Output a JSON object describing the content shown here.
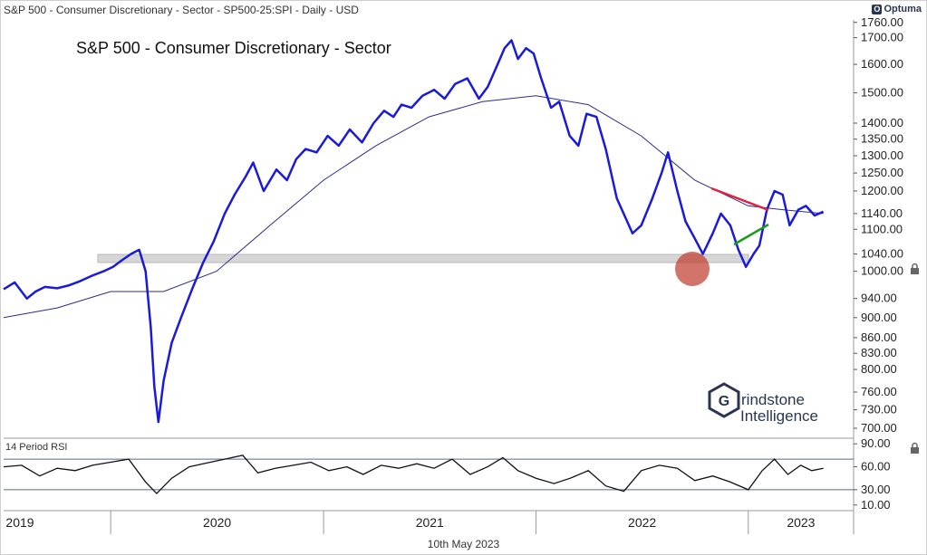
{
  "header": {
    "subtitle": "S&P 500 - Consumer Discretionary - Sector - SP500-25:SPI - Daily - USD",
    "brand": "Optuma",
    "brand_mark": "O"
  },
  "watermark": {
    "line1": "rindstone",
    "line2": "Intelligence",
    "mark": "G"
  },
  "colors": {
    "price": "#1a1adb",
    "ma": "#2c2c8a",
    "support_band": "#d6d6d6",
    "resistance": "#e0213f",
    "rising_support": "#159e15",
    "highlight": "#c0392b",
    "rsi": "#111111",
    "rsi_bounds": "#5a6a8a"
  },
  "footer": {
    "date": "10th May 2023"
  },
  "chart_data": [
    {
      "type": "line",
      "title": "S&P 500 - Consumer Discretionary - Sector",
      "scale": "log",
      "ylim": [
        690,
        1770
      ],
      "ytick_labels": [
        "1760.00",
        "1700.00",
        "1600.00",
        "1500.00",
        "1400.00",
        "1350.00",
        "1300.00",
        "1250.00",
        "1200.00",
        "1140.00",
        "1100.00",
        "1040.00",
        "1000.00",
        "940.00",
        "900.00",
        "860.00",
        "830.00",
        "800.00",
        "760.00",
        "730.00",
        "700.00"
      ],
      "x_labels": [
        "2019",
        "2020",
        "2021",
        "2022",
        "2023"
      ],
      "x_label_dates": [
        "2019-07-01",
        "2020-01-01",
        "2021-01-01",
        "2022-01-01",
        "2023-01-01"
      ],
      "xlim": [
        "2019-07-01",
        "2023-07-01"
      ],
      "series": [
        {
          "dates": [
            "2019-07-01",
            "2019-07-20",
            "2019-08-10",
            "2019-08-25",
            "2019-09-10",
            "2019-10-01",
            "2019-10-20",
            "2019-11-10",
            "2019-11-30",
            "2019-12-20",
            "2020-01-05",
            "2020-01-20",
            "2020-02-05",
            "2020-02-19",
            "2020-03-01",
            "2020-03-10",
            "2020-03-16",
            "2020-03-23",
            "2020-04-01",
            "2020-04-15",
            "2020-05-01",
            "2020-05-20",
            "2020-06-08",
            "2020-06-26",
            "2020-07-15",
            "2020-08-01",
            "2020-08-20",
            "2020-09-02",
            "2020-09-20",
            "2020-10-12",
            "2020-10-30",
            "2020-11-15",
            "2020-12-01",
            "2020-12-20",
            "2021-01-08",
            "2021-01-27",
            "2021-02-15",
            "2021-03-08",
            "2021-03-28",
            "2021-04-15",
            "2021-05-01",
            "2021-05-15",
            "2021-06-01",
            "2021-06-20",
            "2021-07-10",
            "2021-07-28",
            "2021-08-15",
            "2021-09-05",
            "2021-09-25",
            "2021-10-10",
            "2021-10-25",
            "2021-11-08",
            "2021-11-20",
            "2021-12-01",
            "2021-12-15",
            "2021-12-28",
            "2022-01-10",
            "2022-01-27",
            "2022-02-10",
            "2022-02-28",
            "2022-03-15",
            "2022-03-29",
            "2022-04-15",
            "2022-05-01",
            "2022-05-20",
            "2022-06-16",
            "2022-07-01",
            "2022-07-20",
            "2022-08-05",
            "2022-08-16",
            "2022-09-01",
            "2022-09-15",
            "2022-09-30",
            "2022-10-15",
            "2022-11-01",
            "2022-11-15",
            "2022-12-01",
            "2022-12-15",
            "2022-12-28",
            "2023-01-10",
            "2023-01-20",
            "2023-02-02",
            "2023-02-15",
            "2023-03-01",
            "2023-03-13",
            "2023-03-28",
            "2023-04-10",
            "2023-04-25",
            "2023-05-10"
          ],
          "values": [
            960,
            975,
            940,
            955,
            965,
            962,
            968,
            978,
            990,
            1000,
            1010,
            1025,
            1040,
            1050,
            1000,
            880,
            770,
            710,
            780,
            850,
            900,
            960,
            1020,
            1070,
            1140,
            1190,
            1240,
            1280,
            1200,
            1260,
            1230,
            1290,
            1320,
            1310,
            1360,
            1330,
            1380,
            1340,
            1400,
            1440,
            1420,
            1460,
            1450,
            1490,
            1510,
            1480,
            1530,
            1550,
            1480,
            1520,
            1590,
            1660,
            1690,
            1620,
            1660,
            1640,
            1550,
            1450,
            1470,
            1360,
            1330,
            1430,
            1420,
            1320,
            1180,
            1090,
            1110,
            1180,
            1250,
            1310,
            1200,
            1120,
            1080,
            1040,
            1090,
            1140,
            1110,
            1050,
            1010,
            1040,
            1060,
            1150,
            1200,
            1190,
            1110,
            1150,
            1160,
            1135,
            1145
          ]
        },
        {
          "dates": [
            "2019-07-01",
            "2019-10-01",
            "2020-01-01",
            "2020-04-01",
            "2020-07-01",
            "2020-10-01",
            "2021-01-01",
            "2021-04-01",
            "2021-07-01",
            "2021-10-01",
            "2022-01-01",
            "2022-04-01",
            "2022-07-01",
            "2022-10-01",
            "2023-01-01",
            "2023-03-01",
            "2023-05-10"
          ],
          "values": [
            900,
            920,
            955,
            955,
            1000,
            1110,
            1230,
            1330,
            1420,
            1470,
            1490,
            1460,
            1360,
            1230,
            1160,
            1150,
            1140
          ]
        }
      ]
    },
    {
      "type": "line",
      "title": "14 Period RSI",
      "ylim": [
        5,
        95
      ],
      "ytick_labels": [
        "90.00",
        "60.00",
        "30.00",
        "10.00"
      ],
      "reference_lines": [
        70,
        30
      ],
      "series": [
        {
          "dates": [
            "2019-07-01",
            "2019-08-01",
            "2019-09-01",
            "2019-10-01",
            "2019-11-01",
            "2019-12-01",
            "2020-01-01",
            "2020-02-01",
            "2020-03-01",
            "2020-03-20",
            "2020-04-15",
            "2020-05-15",
            "2020-06-15",
            "2020-07-15",
            "2020-08-15",
            "2020-09-10",
            "2020-10-10",
            "2020-11-10",
            "2020-12-10",
            "2021-01-10",
            "2021-02-10",
            "2021-03-10",
            "2021-04-10",
            "2021-05-10",
            "2021-06-10",
            "2021-07-10",
            "2021-08-10",
            "2021-09-10",
            "2021-10-10",
            "2021-11-05",
            "2021-12-01",
            "2022-01-01",
            "2022-02-01",
            "2022-03-01",
            "2022-04-01",
            "2022-05-01",
            "2022-06-01",
            "2022-07-01",
            "2022-08-01",
            "2022-09-01",
            "2022-10-01",
            "2022-11-01",
            "2022-12-01",
            "2023-01-01",
            "2023-01-25",
            "2023-02-15",
            "2023-03-10",
            "2023-04-01",
            "2023-04-20",
            "2023-05-10"
          ],
          "values": [
            60,
            62,
            48,
            58,
            55,
            62,
            66,
            70,
            40,
            25,
            45,
            60,
            65,
            70,
            75,
            52,
            58,
            62,
            66,
            55,
            60,
            50,
            62,
            58,
            64,
            58,
            70,
            50,
            60,
            72,
            55,
            45,
            38,
            45,
            55,
            35,
            28,
            55,
            62,
            58,
            42,
            48,
            40,
            30,
            55,
            70,
            50,
            62,
            55,
            58
          ]
        }
      ]
    }
  ]
}
